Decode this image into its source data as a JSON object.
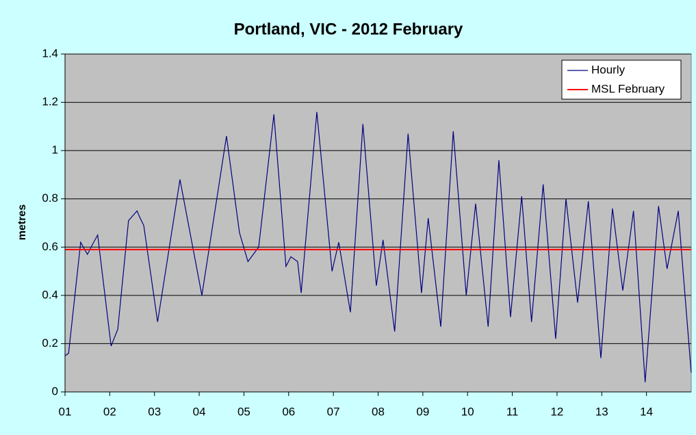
{
  "chart_data": {
    "type": "line",
    "title": "Portland, VIC - 2012 February",
    "y_label": "metres",
    "xlim": [
      1,
      15
    ],
    "ylim": [
      0,
      1.4
    ],
    "xticks": [
      {
        "value": 1,
        "label": "01"
      },
      {
        "value": 2,
        "label": "02"
      },
      {
        "value": 3,
        "label": "03"
      },
      {
        "value": 4,
        "label": "04"
      },
      {
        "value": 5,
        "label": "05"
      },
      {
        "value": 6,
        "label": "06"
      },
      {
        "value": 7,
        "label": "07"
      },
      {
        "value": 8,
        "label": "08"
      },
      {
        "value": 9,
        "label": "09"
      },
      {
        "value": 10,
        "label": "10"
      },
      {
        "value": 11,
        "label": "11"
      },
      {
        "value": 12,
        "label": "12"
      },
      {
        "value": 13,
        "label": "13"
      },
      {
        "value": 14,
        "label": "14"
      }
    ],
    "yticks": [
      0,
      0.2,
      0.4,
      0.6,
      0.8,
      1,
      1.2,
      1.4
    ],
    "grid": true,
    "legend": "top-right",
    "series": [
      {
        "name": "Hourly",
        "color": "#000080",
        "x": [
          1.0,
          1.08,
          1.35,
          1.5,
          1.64,
          1.73,
          2.03,
          2.18,
          2.42,
          2.61,
          2.68,
          2.76,
          3.07,
          3.57,
          4.06,
          4.61,
          4.9,
          5.09,
          5.33,
          5.67,
          5.94,
          6.05,
          6.2,
          6.28,
          6.63,
          6.97,
          7.12,
          7.38,
          7.66,
          7.96,
          8.11,
          8.37,
          8.67,
          8.97,
          9.12,
          9.4,
          9.68,
          9.97,
          10.18,
          10.46,
          10.7,
          10.96,
          11.21,
          11.43,
          11.69,
          11.97,
          12.2,
          12.46,
          12.7,
          12.98,
          13.24,
          13.47,
          13.71,
          13.97,
          14.27,
          14.46,
          14.71,
          15.0
        ],
        "values": [
          0.15,
          0.16,
          0.62,
          0.57,
          0.62,
          0.65,
          0.19,
          0.26,
          0.71,
          0.75,
          0.72,
          0.69,
          0.29,
          0.88,
          0.4,
          1.06,
          0.66,
          0.54,
          0.6,
          1.15,
          0.52,
          0.56,
          0.54,
          0.41,
          1.16,
          0.5,
          0.62,
          0.33,
          1.11,
          0.44,
          0.63,
          0.25,
          1.07,
          0.41,
          0.72,
          0.27,
          1.08,
          0.4,
          0.78,
          0.27,
          0.96,
          0.31,
          0.81,
          0.29,
          0.86,
          0.22,
          0.8,
          0.37,
          0.79,
          0.14,
          0.76,
          0.42,
          0.75,
          0.04,
          0.77,
          0.51,
          0.75,
          0.08
        ]
      },
      {
        "name": "MSL February",
        "color": "#ff0000",
        "value": 0.59
      }
    ]
  }
}
